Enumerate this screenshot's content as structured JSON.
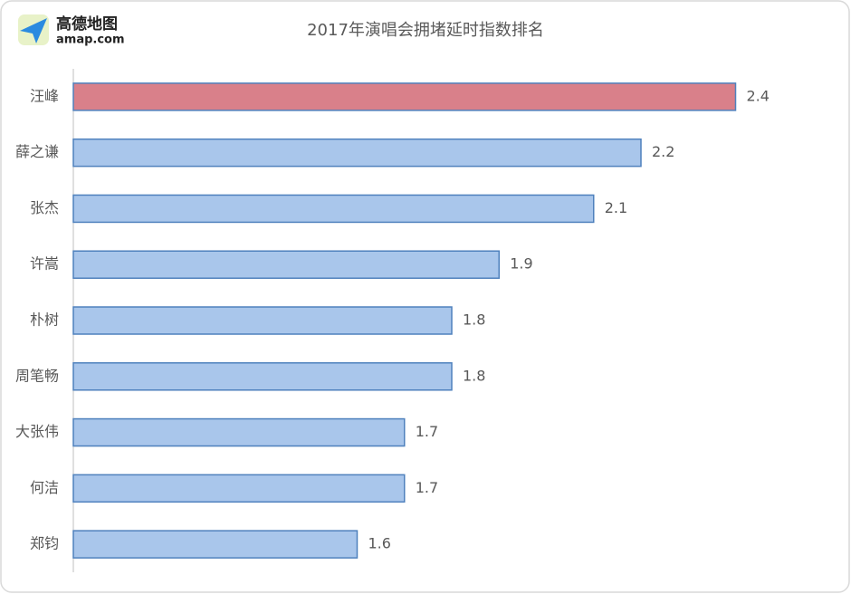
{
  "logo": {
    "name": "高德地图",
    "site": "amap.com"
  },
  "chart_data": {
    "type": "bar",
    "orientation": "horizontal",
    "title": "2017年演唱会拥堵延时指数排名",
    "categories": [
      "汪峰",
      "薛之谦",
      "张杰",
      "许嵩",
      "朴树",
      "周笔畅",
      "大张伟",
      "何洁",
      "郑钧"
    ],
    "values": [
      2.4,
      2.2,
      2.1,
      1.9,
      1.8,
      1.8,
      1.7,
      1.7,
      1.6
    ],
    "colors": [
      "#d9808a",
      "#a9c6eb",
      "#a9c6eb",
      "#a9c6eb",
      "#a9c6eb",
      "#a9c6eb",
      "#a9c6eb",
      "#a9c6eb",
      "#a9c6eb"
    ],
    "xlim": [
      1,
      2.6
    ]
  }
}
